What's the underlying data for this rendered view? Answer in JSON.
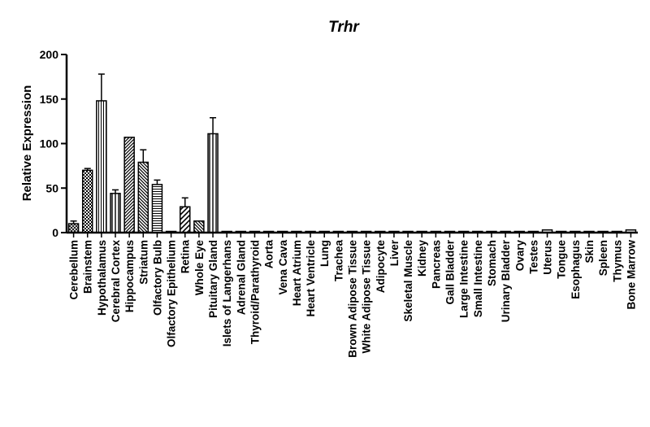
{
  "chart_data": {
    "type": "bar",
    "title": "Trhr",
    "xlabel": "",
    "ylabel": "Relative Expression",
    "ylim": [
      0,
      200
    ],
    "yticks": [
      "0",
      "50",
      "100",
      "150",
      "200"
    ],
    "grid": false,
    "categories": [
      "Cerebellum",
      "Brainstem",
      "Hypothalamus",
      "Cerebral Cortex",
      "Hippocampus",
      "Striatum",
      "Olfactory Bulb",
      "Olfactory Epithelium",
      "Retina",
      "Whole Eye",
      "Pituitary Gland",
      "Islets of Langerhans",
      "Adrenal Gland",
      "Thyroid/Parathyroid",
      "Aorta",
      "Vena Cava",
      "Heart Atrium",
      "Heart Ventricle",
      "Lung",
      "Trachea",
      "Brown Adipose Tissue",
      "White Adipose Tissue",
      "Adipocyte",
      "Liver",
      "Skeletal Muscle",
      "Kidney",
      "Pancreas",
      "Gall Bladder",
      "Large Intestine",
      "Small Intestine",
      "Stomach",
      "Urinary Bladder",
      "Ovary",
      "Testes",
      "Uterus",
      "Tongue",
      "Esophagus",
      "Skin",
      "Spleen",
      "Thymus",
      "Bone Marrow"
    ],
    "values": [
      10,
      70,
      148,
      44,
      107,
      79,
      54,
      0.5,
      29,
      13,
      111,
      0.5,
      0.5,
      0.5,
      0.5,
      0.5,
      0.5,
      0.5,
      0.5,
      0.5,
      0.5,
      0.5,
      0.5,
      0.5,
      0.5,
      0.5,
      0.5,
      0.5,
      0.5,
      0.5,
      0.5,
      0.5,
      0.5,
      0.5,
      3,
      0.5,
      0.5,
      0.5,
      0.5,
      0.5,
      3
    ],
    "errors": [
      3,
      2,
      30,
      4,
      0,
      14,
      5,
      0,
      10,
      0,
      18,
      0,
      0,
      0,
      0,
      0,
      0,
      0,
      0,
      0,
      0,
      0,
      0,
      0,
      0,
      0,
      0,
      0,
      0,
      0,
      0,
      0,
      0,
      0,
      0,
      0,
      0,
      0,
      0,
      0,
      0
    ],
    "patterns": [
      "crosshatch",
      "checker",
      "vstripes",
      "vstripes-wide",
      "diag-right",
      "diag-left",
      "hstripes",
      "none",
      "diag-right-wide",
      "diag-left",
      "vstripes-wide",
      "none",
      "none",
      "none",
      "none",
      "none",
      "none",
      "none",
      "none",
      "none",
      "none",
      "none",
      "none",
      "none",
      "none",
      "none",
      "none",
      "none",
      "none",
      "none",
      "none",
      "none",
      "none",
      "none",
      "none",
      "none",
      "none",
      "none",
      "none",
      "none",
      "none"
    ]
  }
}
